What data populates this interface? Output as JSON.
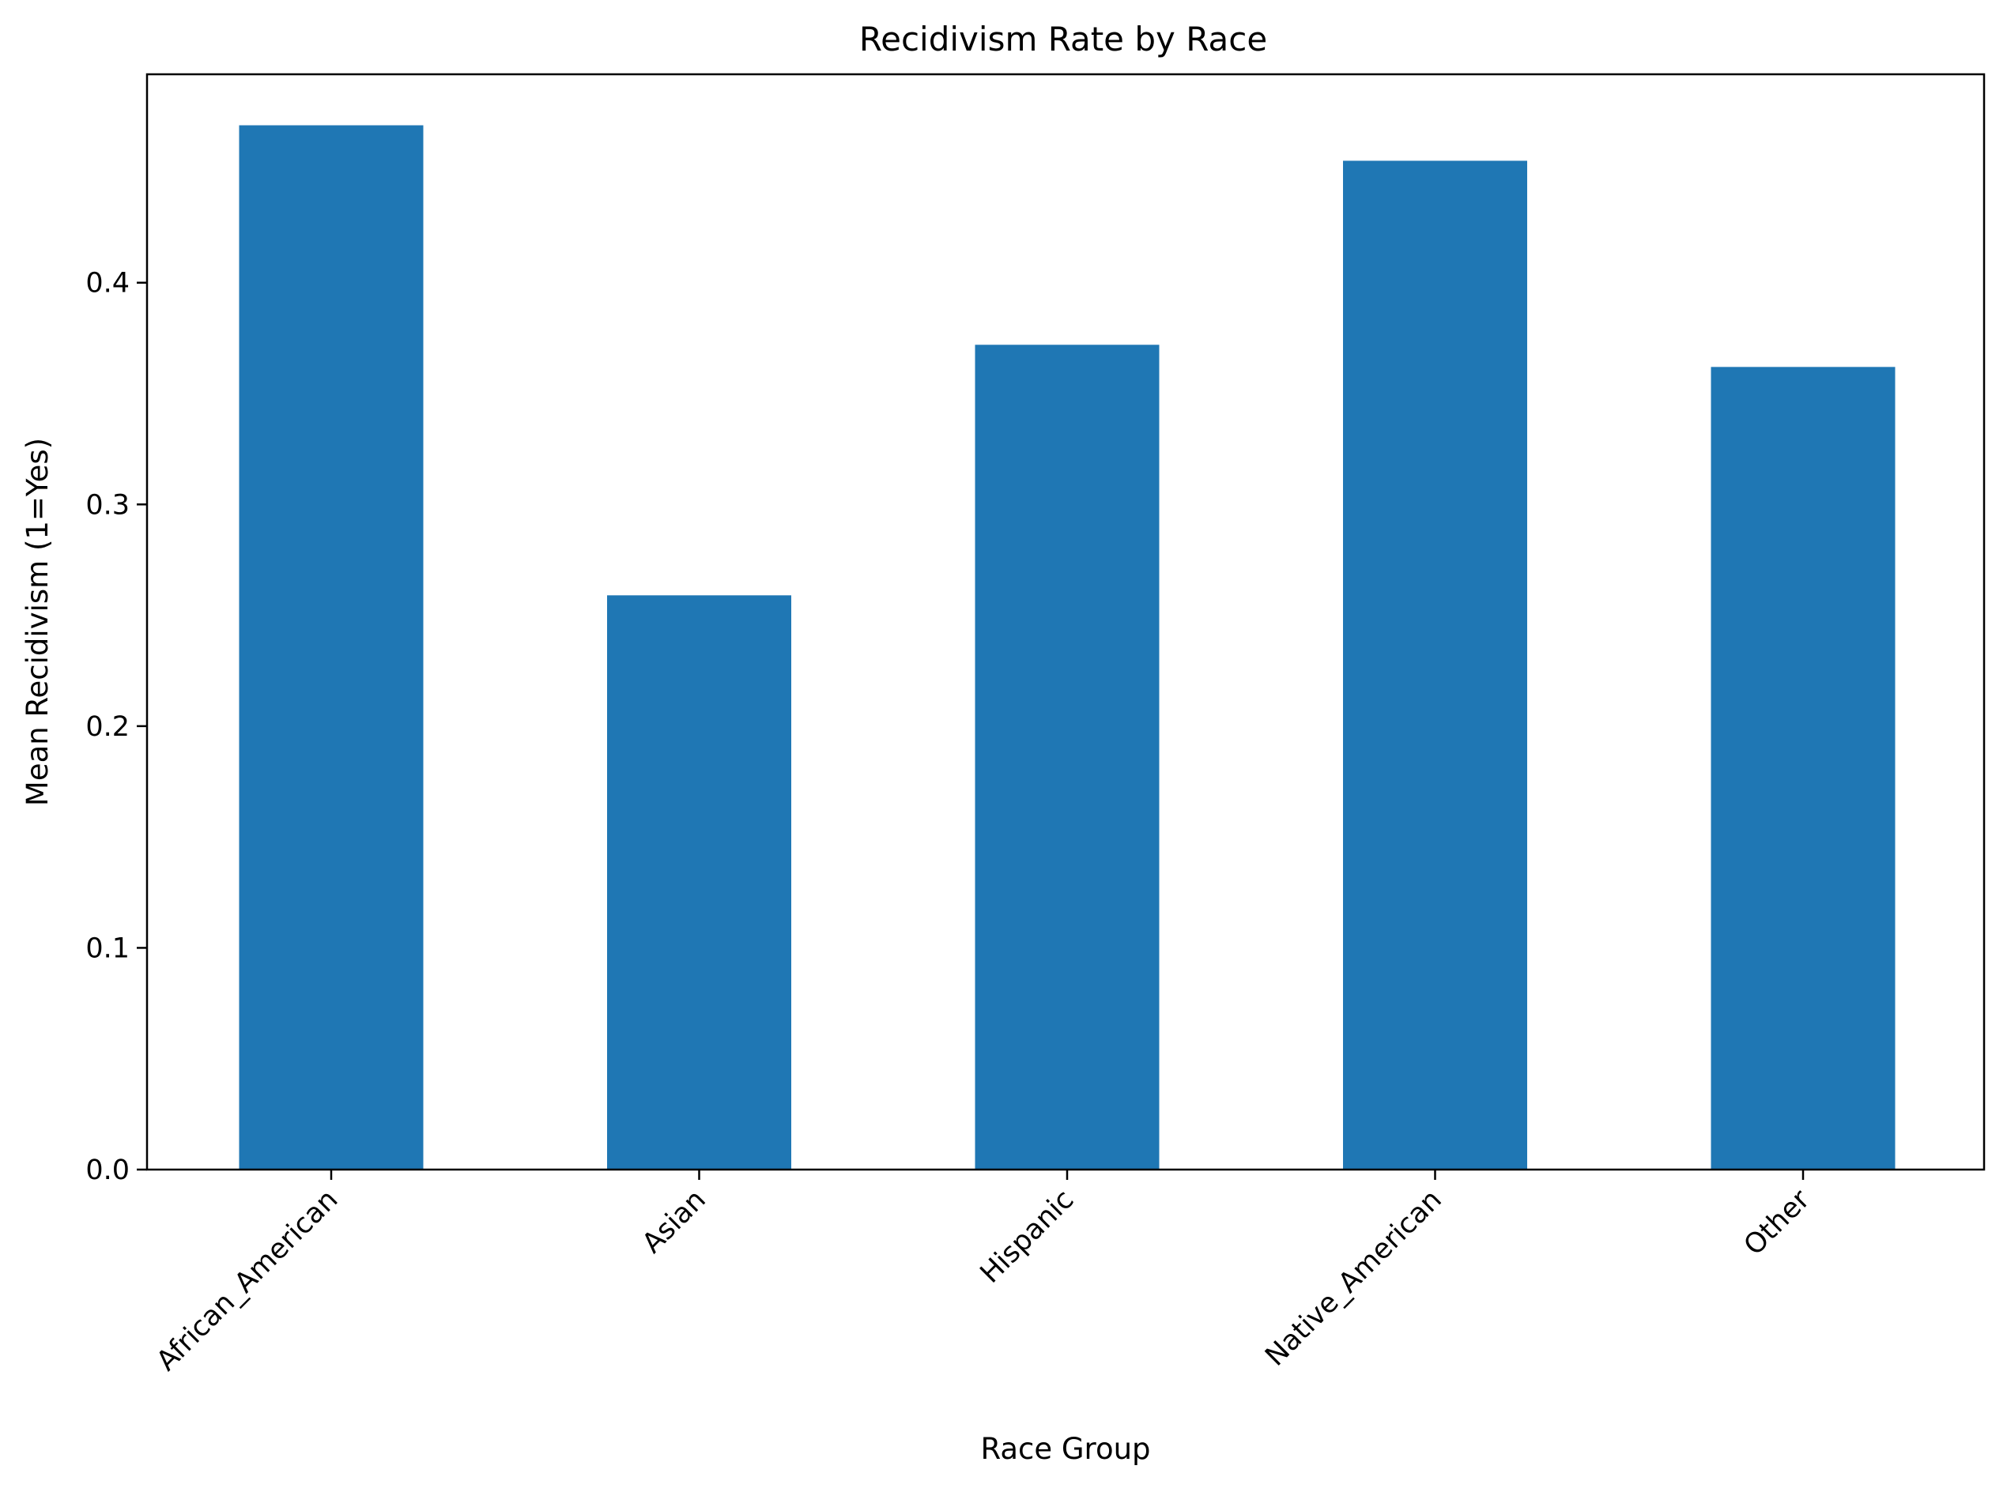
{
  "chart_data": {
    "type": "bar",
    "title": "Recidivism Rate by Race",
    "xlabel": "Race Group",
    "ylabel": "Mean Recidivism (1=Yes)",
    "categories": [
      "African_American",
      "Asian",
      "Hispanic",
      "Native_American",
      "Other"
    ],
    "values": [
      0.471,
      0.259,
      0.372,
      0.455,
      0.362
    ],
    "ylim": [
      0,
      0.494
    ],
    "yticks": [
      0.0,
      0.1,
      0.2,
      0.3,
      0.4
    ],
    "ytick_labels": [
      "0.0",
      "0.1",
      "0.2",
      "0.3",
      "0.4"
    ],
    "bar_color": "#1f77b4",
    "grid": false,
    "legend": "none"
  }
}
